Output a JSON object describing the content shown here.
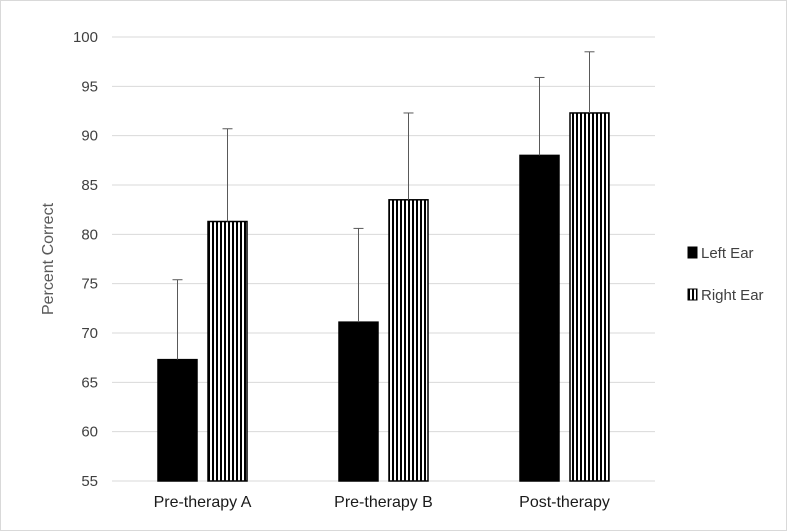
{
  "chart_data": {
    "type": "bar",
    "title": "",
    "xlabel": "",
    "ylabel": "Percent Correct",
    "ylim": [
      55,
      100
    ],
    "yticks": [
      55,
      60,
      65,
      70,
      75,
      80,
      85,
      90,
      95,
      100
    ],
    "grid": true,
    "legend_position": "right",
    "categories": [
      "Pre-therapy A",
      "Pre-therapy B",
      "Post-therapy"
    ],
    "series": [
      {
        "name": "Left Ear",
        "fill": "solid",
        "color": "#000000",
        "values": [
          67.3,
          71.1,
          88.0
        ],
        "error": [
          8.1,
          9.5,
          7.9
        ]
      },
      {
        "name": "Right Ear",
        "fill": "vertical-stripes",
        "color": "#000000",
        "values": [
          81.3,
          83.5,
          92.3
        ],
        "error": [
          9.4,
          8.8,
          6.2
        ]
      }
    ]
  }
}
